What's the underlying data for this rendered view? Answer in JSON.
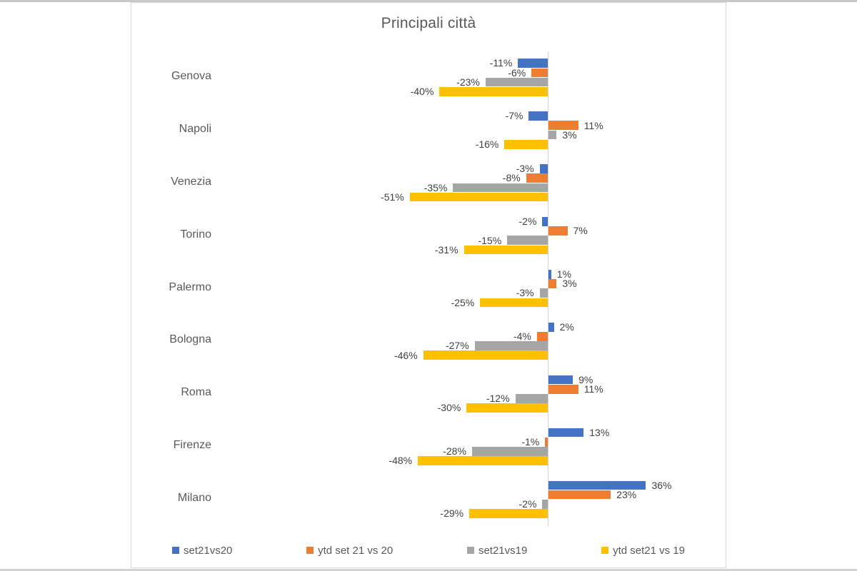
{
  "chart_data": {
    "type": "bar",
    "orientation": "horizontal",
    "title": "Principali città",
    "categories": [
      "Genova",
      "Napoli",
      "Venezia",
      "Torino",
      "Palermo",
      "Bologna",
      "Roma",
      "Firenze",
      "Milano"
    ],
    "series": [
      {
        "name": "set21vs20",
        "color": "#4472C4",
        "values": [
          -11,
          -7,
          -3,
          -2,
          1,
          2,
          9,
          13,
          36
        ]
      },
      {
        "name": "ytd set 21 vs 20",
        "color": "#ED7D31",
        "values": [
          -6,
          11,
          -8,
          7,
          3,
          -4,
          11,
          -1,
          23
        ]
      },
      {
        "name": "set21vs19",
        "color": "#A5A5A5",
        "values": [
          -23,
          3,
          -35,
          -15,
          -3,
          -27,
          -12,
          -28,
          -2
        ]
      },
      {
        "name": "ytd set21 vs 19",
        "color": "#FFC000",
        "values": [
          -40,
          -16,
          -51,
          -31,
          -25,
          -46,
          -30,
          -48,
          -29
        ]
      }
    ],
    "data_label_suffix": "%",
    "value_axis_visible": false,
    "grid": false,
    "legend_position": "bottom"
  },
  "colors": {
    "title_text": "#595959",
    "data_label_text": "#404040",
    "axis_line": "#d0d0d0",
    "panel_border": "#d6d6d6"
  }
}
